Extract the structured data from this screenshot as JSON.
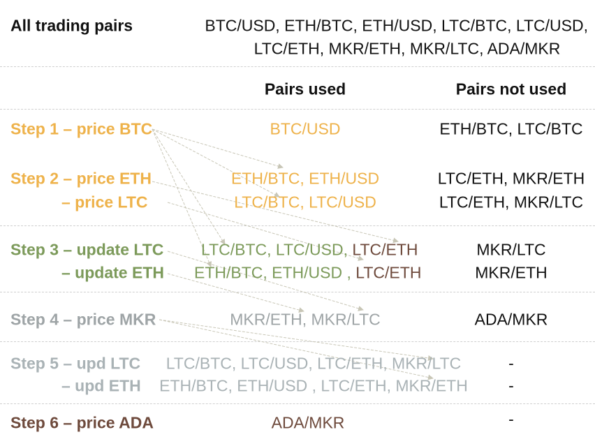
{
  "colors": {
    "orange": "#eeb24a",
    "green": "#7c9a5a",
    "gray": "#9ea4a6",
    "lightgray": "#a9b2b5",
    "brown": "#6e4a3c",
    "black": "#111111",
    "arrow": "#c8c6b6"
  },
  "all_pairs": {
    "label": "All trading pairs",
    "line1": "BTC/USD, ETH/BTC, ETH/USD, LTC/BTC, LTC/USD,",
    "line2": "LTC/ETH, MKR/ETH, MKR/LTC, ADA/MKR"
  },
  "headers": {
    "used": "Pairs used",
    "not_used": "Pairs not used"
  },
  "steps": {
    "s1": {
      "label": "Step 1 – price BTC",
      "used": "BTC/USD",
      "not_used": "ETH/BTC, LTC/BTC"
    },
    "s2a": {
      "label": "Step 2 – price ETH",
      "used": "ETH/BTC, ETH/USD",
      "not_used": "LTC/ETH, MKR/ETH"
    },
    "s2b": {
      "label": "– price LTC",
      "used": "LTC/BTC, LTC/USD",
      "not_used": "LTC/ETH, MKR/LTC"
    },
    "s3a": {
      "label": "Step 3 – update LTC",
      "used_main": "LTC/BTC, LTC/USD,",
      "used_new": "LTC/ETH",
      "not_used": "MKR/LTC"
    },
    "s3b": {
      "label": "– update ETH",
      "used_main": "ETH/BTC, ETH/USD ,",
      "used_new": "LTC/ETH",
      "not_used": "MKR/ETH"
    },
    "s4": {
      "label": "Step 4 – price MKR",
      "used": "MKR/ETH, MKR/LTC",
      "not_used": "ADA/MKR"
    },
    "s5a": {
      "label": "Step 5 – upd LTC",
      "used": "LTC/BTC, LTC/USD, LTC/ETH, MKR/LTC",
      "not_used": "-"
    },
    "s5b": {
      "label": "– upd ETH",
      "used": "ETH/BTC, ETH/USD , LTC/ETH, MKR/ETH",
      "not_used": "-"
    },
    "s6": {
      "label": "Step 6 – price ADA",
      "used": "ADA/MKR",
      "not_used": "-"
    }
  }
}
